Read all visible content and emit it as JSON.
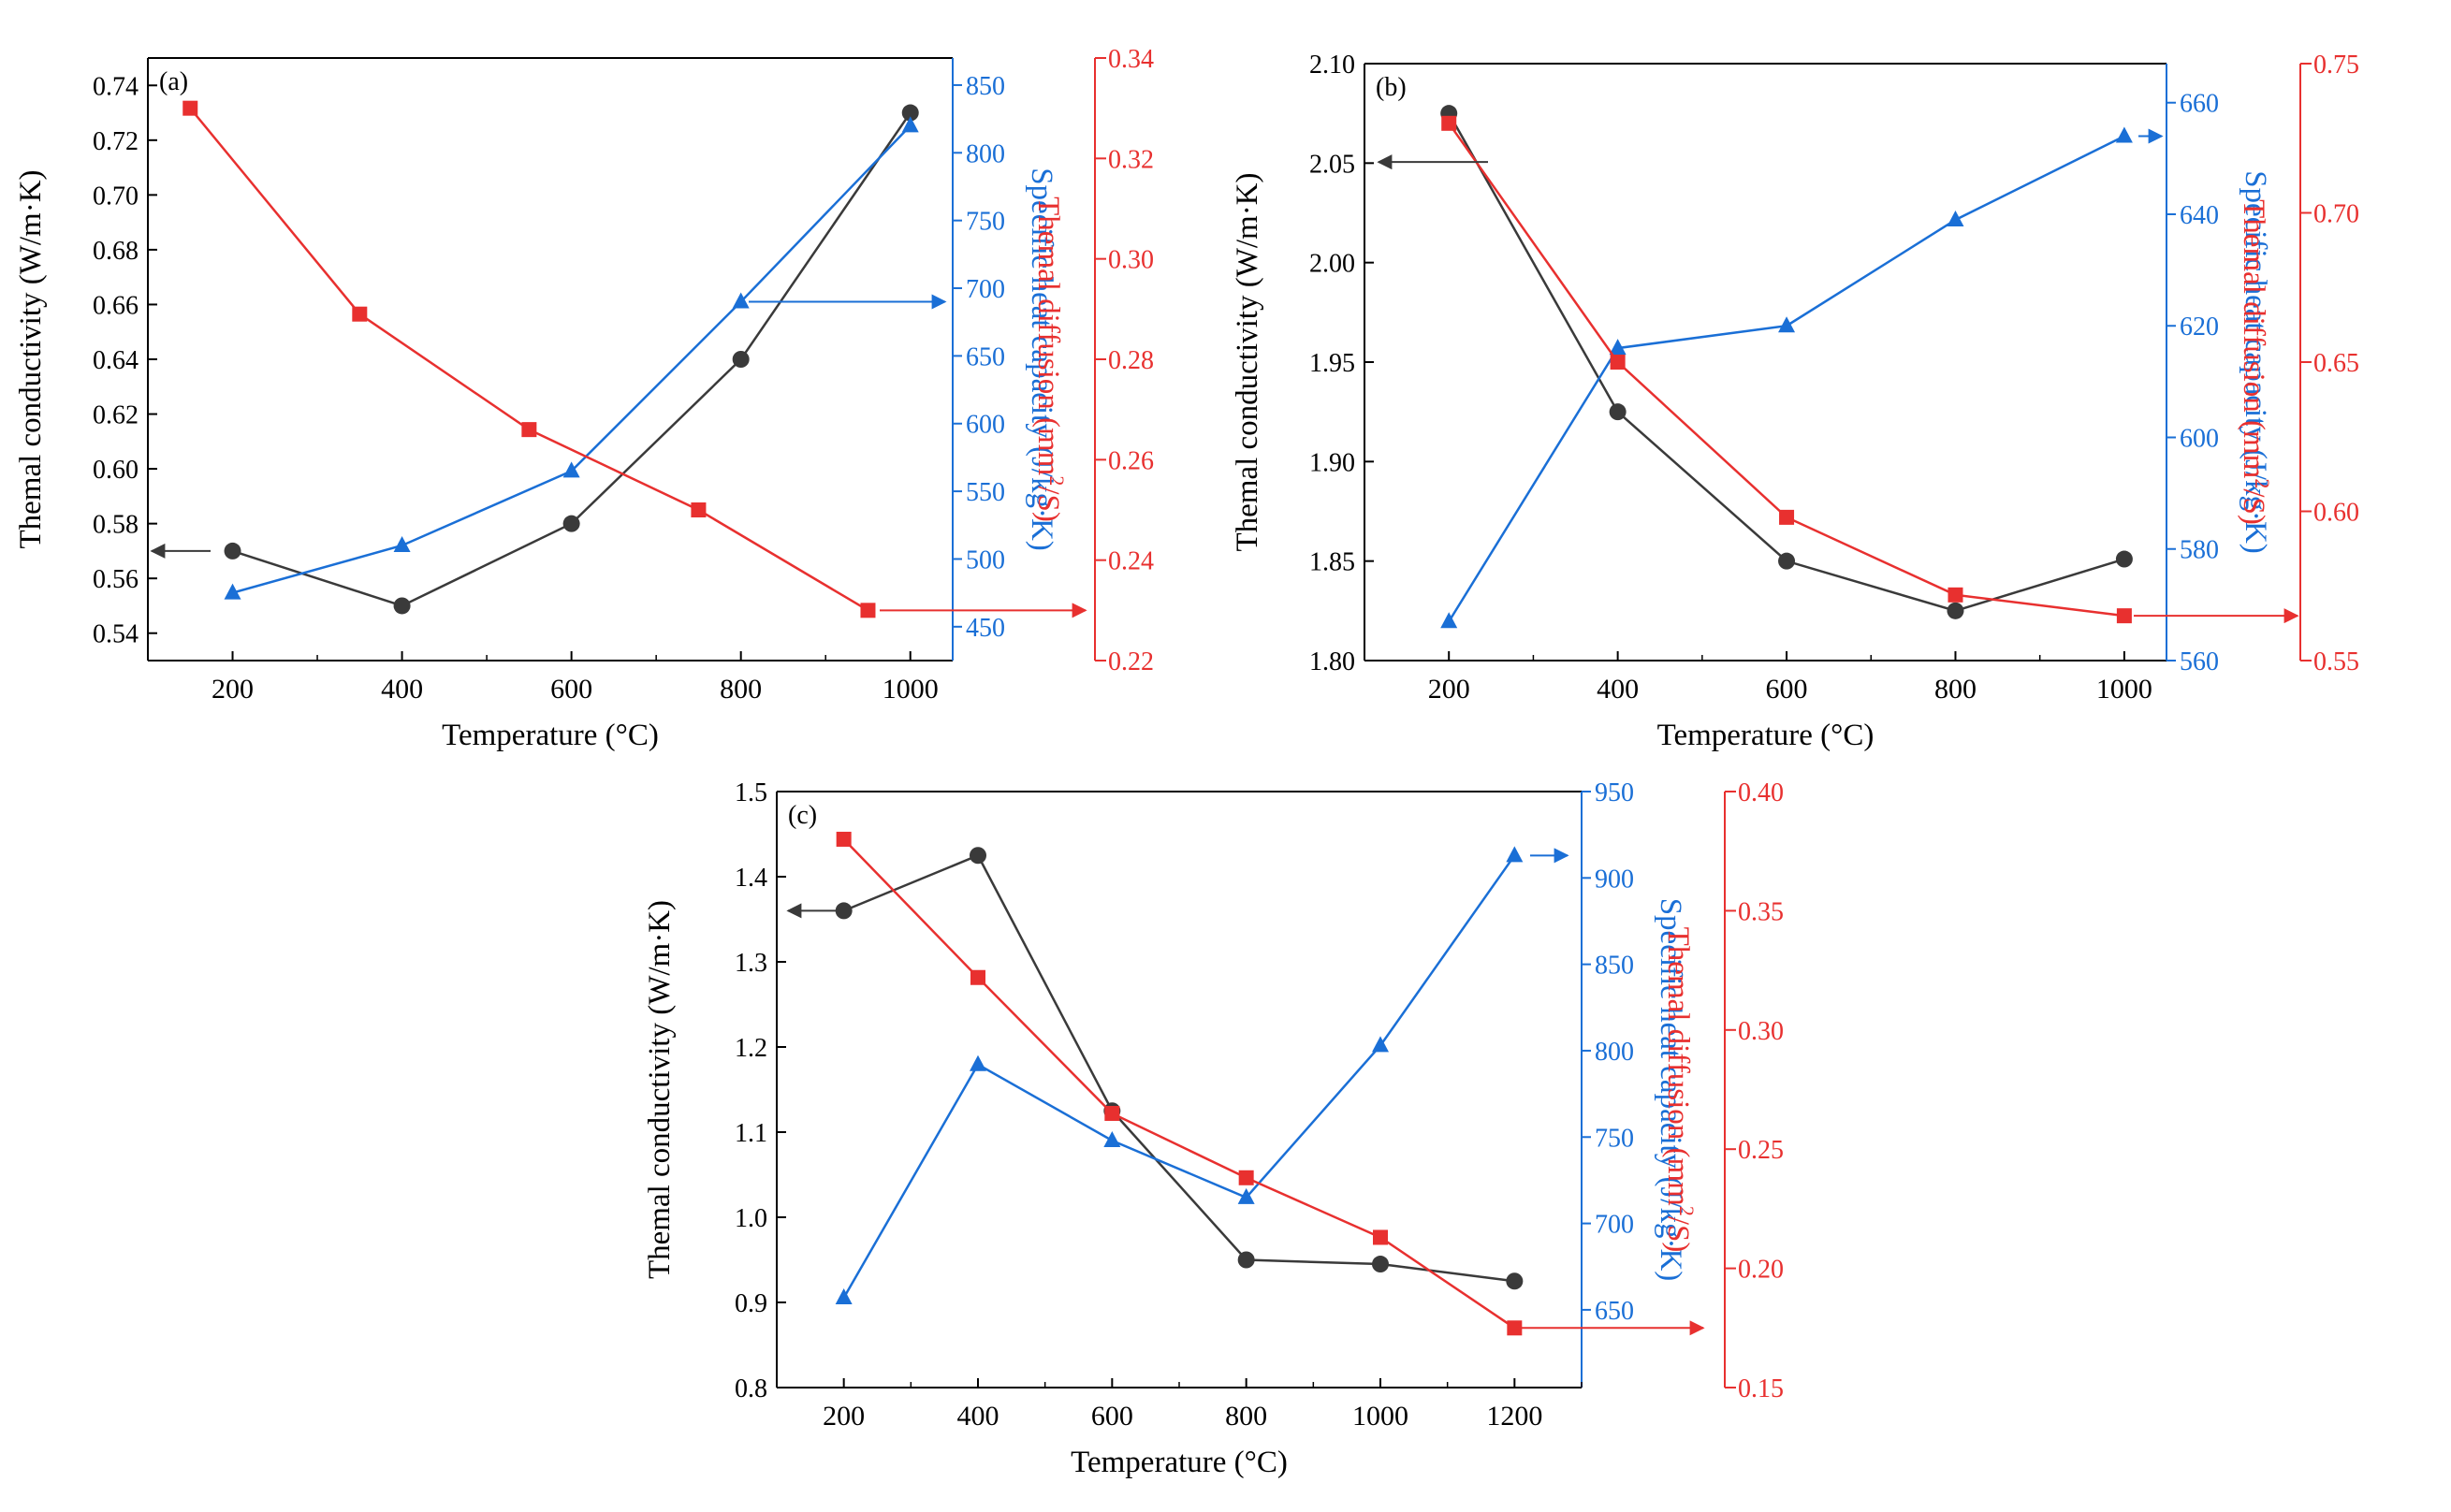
{
  "colors": {
    "conductivity": "#3a3a3a",
    "heat_capacity": "#1a6fd6",
    "diffusion": "#e8302f"
  },
  "chart_data": [
    {
      "type": "line",
      "panel_label": "(a)",
      "xlabel": "Temperature (°C)",
      "xlim": [
        100,
        1050
      ],
      "x_ticks": [
        "200",
        "400",
        "600",
        "800",
        "1000"
      ],
      "axes": {
        "left": {
          "label": "Themal conductivity (W/m·K)",
          "ylim": [
            0.53,
            0.75
          ],
          "ticks": [
            "0.54",
            "0.56",
            "0.58",
            "0.60",
            "0.62",
            "0.64",
            "0.66",
            "0.68",
            "0.70",
            "0.72",
            "0.74"
          ]
        },
        "right1": {
          "label": "Specific heat capacity (J/kg·K)",
          "ylim": [
            425,
            870
          ],
          "ticks": [
            "450",
            "500",
            "550",
            "600",
            "650",
            "700",
            "750",
            "800",
            "850"
          ]
        },
        "right2": {
          "label": "Themal diffusion (mm²/S)",
          "label_parts": [
            "Themal diffusion (mm",
            "2",
            "/S)"
          ],
          "ylim": [
            0.22,
            0.34
          ],
          "ticks": [
            "0.22",
            "0.24",
            "0.26",
            "0.28",
            "0.30",
            "0.32",
            "0.34"
          ]
        }
      },
      "series": [
        {
          "name": "Themal conductivity",
          "axis": "left",
          "marker": "circle",
          "x": [
            200,
            400,
            600,
            800,
            1000
          ],
          "values": [
            0.57,
            0.55,
            0.58,
            0.64,
            0.73
          ]
        },
        {
          "name": "Specific heat capacity",
          "axis": "right1",
          "marker": "triangle",
          "x": [
            200,
            400,
            600,
            800,
            1000
          ],
          "values": [
            475,
            510,
            565,
            690,
            820
          ]
        },
        {
          "name": "Themal diffusion",
          "axis": "right2",
          "marker": "square",
          "x": [
            150,
            350,
            550,
            750,
            950
          ],
          "values": [
            0.33,
            0.289,
            0.266,
            0.25,
            0.23
          ]
        }
      ]
    },
    {
      "type": "line",
      "panel_label": "(b)",
      "xlabel": "Temperature (°C)",
      "xlim": [
        100,
        1050
      ],
      "x_ticks": [
        "200",
        "400",
        "600",
        "800",
        "1000"
      ],
      "axes": {
        "left": {
          "label": "Themal conductivity (W/m·K)",
          "ylim": [
            1.8,
            2.1
          ],
          "ticks": [
            "1.80",
            "1.85",
            "1.90",
            "1.95",
            "2.00",
            "2.05",
            "2.10"
          ]
        },
        "right1": {
          "label": "Specific heat capacity (J/kg·K)",
          "ylim": [
            560,
            667
          ],
          "ticks": [
            "560",
            "580",
            "600",
            "620",
            "640",
            "660"
          ]
        },
        "right2": {
          "label": "Themal diffusion (mm²/S)",
          "label_parts": [
            "Themal diffusion (mm",
            "2",
            "/S)"
          ],
          "ylim": [
            0.55,
            0.75
          ],
          "ticks": [
            "0.55",
            "0.60",
            "0.65",
            "0.70",
            "0.75"
          ]
        }
      },
      "series": [
        {
          "name": "Themal conductivity",
          "axis": "left",
          "marker": "circle",
          "x": [
            200,
            400,
            600,
            800,
            1000
          ],
          "values": [
            2.075,
            1.925,
            1.85,
            1.825,
            1.851
          ]
        },
        {
          "name": "Specific heat capacity",
          "axis": "right1",
          "marker": "triangle",
          "x": [
            200,
            400,
            600,
            800,
            1000
          ],
          "values": [
            567,
            616,
            620,
            639,
            654
          ]
        },
        {
          "name": "Themal diffusion",
          "axis": "right2",
          "marker": "square",
          "x": [
            200,
            400,
            600,
            800,
            1000
          ],
          "values": [
            0.73,
            0.65,
            0.598,
            0.572,
            0.565
          ]
        }
      ]
    },
    {
      "type": "line",
      "panel_label": "(c)",
      "xlabel": "Temperature (°C)",
      "xlim": [
        100,
        1300
      ],
      "x_ticks": [
        "200",
        "400",
        "600",
        "800",
        "1000",
        "1200"
      ],
      "axes": {
        "left": {
          "label": "Themal conductivity (W/m·K)",
          "ylim": [
            0.8,
            1.5
          ],
          "ticks": [
            "0.8",
            "0.9",
            "1.0",
            "1.1",
            "1.2",
            "1.3",
            "1.4",
            "1.5"
          ]
        },
        "right1": {
          "label": "Specific heat capacity (J/kg·K)",
          "ylim": [
            605,
            950
          ],
          "ticks": [
            "650",
            "700",
            "750",
            "800",
            "850",
            "900",
            "950"
          ]
        },
        "right2": {
          "label": "Themal diffusion (mm²/S)",
          "label_parts": [
            "Themal diffusion (mm",
            "2",
            "/S)"
          ],
          "ylim": [
            0.15,
            0.4
          ],
          "ticks": [
            "0.15",
            "0.20",
            "0.25",
            "0.30",
            "0.35",
            "0.40"
          ]
        }
      },
      "series": [
        {
          "name": "Themal conductivity",
          "axis": "left",
          "marker": "circle",
          "x": [
            200,
            400,
            600,
            800,
            1000,
            1200
          ],
          "values": [
            1.36,
            1.425,
            1.125,
            0.95,
            0.945,
            0.925
          ]
        },
        {
          "name": "Specific heat capacity",
          "axis": "right1",
          "marker": "triangle",
          "x": [
            200,
            400,
            600,
            800,
            1000,
            1200
          ],
          "values": [
            657,
            792,
            748,
            715,
            803,
            913
          ]
        },
        {
          "name": "Themal diffusion",
          "axis": "right2",
          "marker": "square",
          "x": [
            200,
            400,
            600,
            800,
            1000,
            1200
          ],
          "values": [
            0.38,
            0.322,
            0.265,
            0.238,
            0.213,
            0.175
          ]
        }
      ]
    }
  ]
}
